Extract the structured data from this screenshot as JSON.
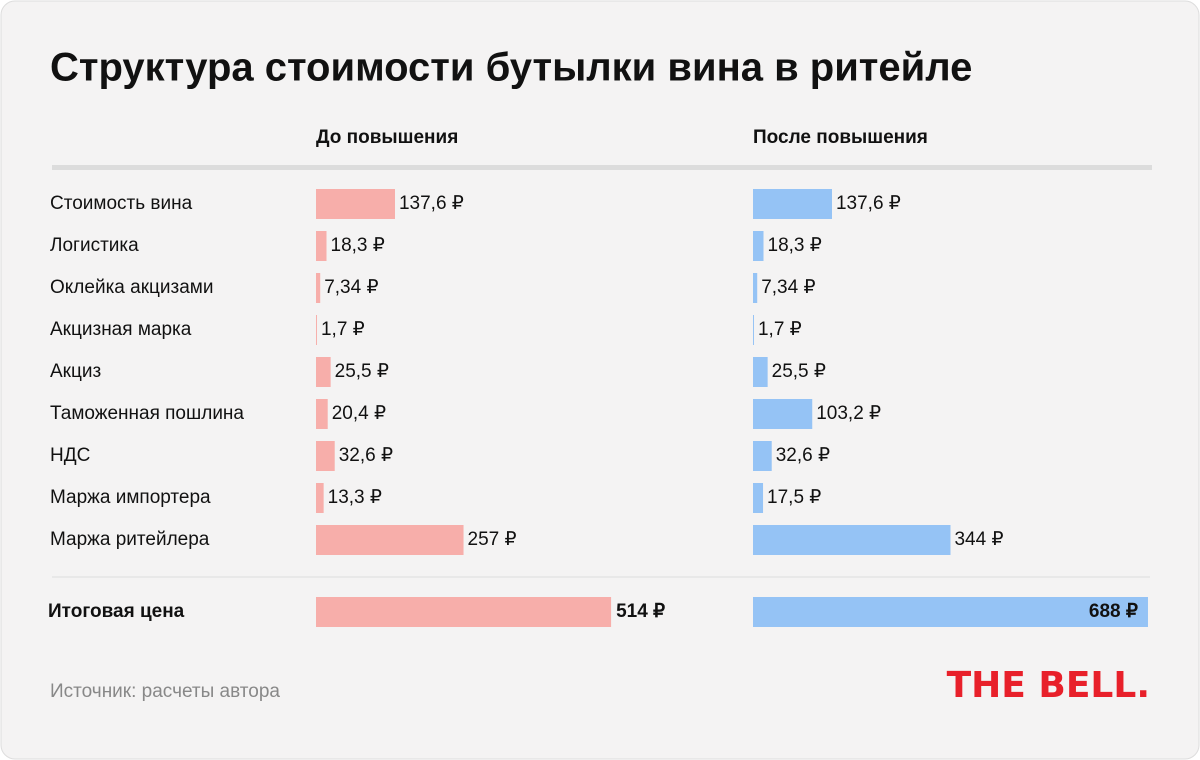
{
  "chart_data": {
    "type": "bar",
    "title": "Структура стоимости бутылки вина в ритейле",
    "categories": [
      "Стоимость вина",
      "Логистика",
      "Оклейка акцизами",
      "Акцизная марка",
      "Акциз",
      "Таможенная пошлина",
      "НДС",
      "Маржа импортера",
      "Маржа ритейлера"
    ],
    "series": [
      {
        "name": "До повышения",
        "color": "#f7aeaa",
        "values": [
          137.6,
          18.3,
          7.34,
          1.7,
          25.5,
          20.4,
          32.6,
          13.3,
          257
        ],
        "value_labels": [
          "137,6 ₽",
          "18,3 ₽",
          "7,34 ₽",
          "1,7 ₽",
          "25,5 ₽",
          "20,4 ₽",
          "32,6 ₽",
          "13,3 ₽",
          "257 ₽"
        ],
        "total": 514,
        "total_label": "514 ₽"
      },
      {
        "name": "После повышения",
        "color": "#95c3f5",
        "values": [
          137.6,
          18.3,
          7.34,
          1.7,
          25.5,
          103.2,
          32.6,
          17.5,
          344
        ],
        "value_labels": [
          "137,6 ₽",
          "18,3 ₽",
          "7,34 ₽",
          "1,7 ₽",
          "25,5 ₽",
          "103,2 ₽",
          "32,6 ₽",
          "17,5 ₽",
          "344 ₽"
        ],
        "total": 688,
        "total_label": "688 ₽"
      }
    ],
    "total_category": "Итоговая цена",
    "source": "Источник: расчеты автора",
    "logo": "THE BELL."
  }
}
